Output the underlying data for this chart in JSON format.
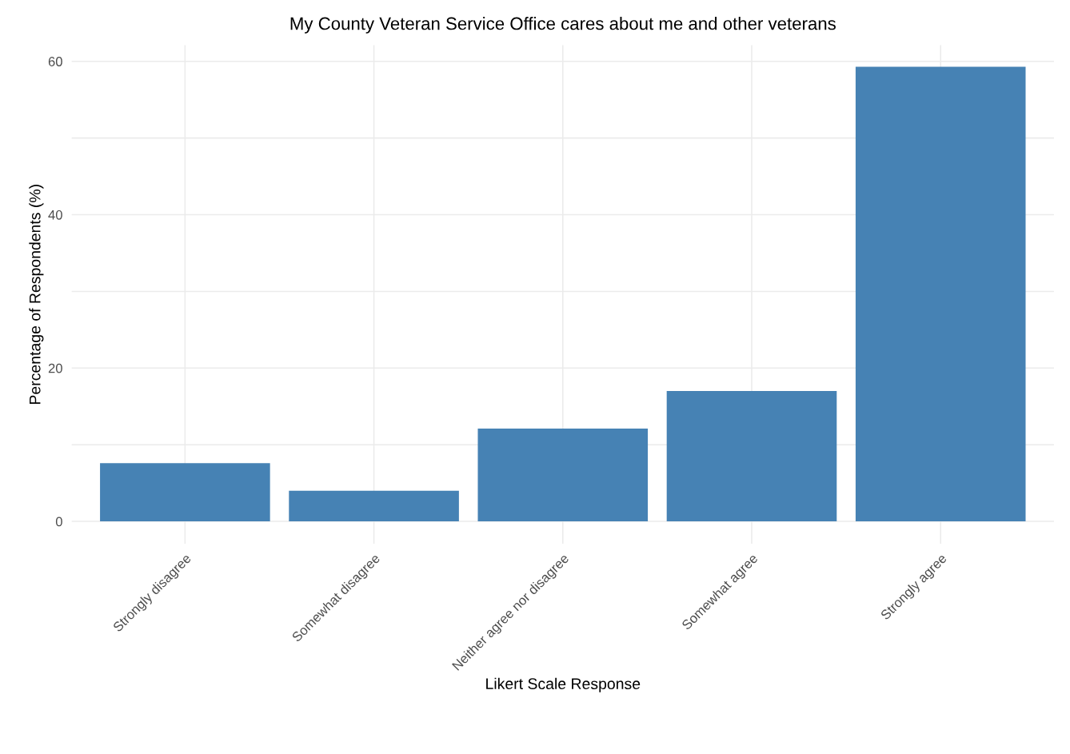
{
  "chart_data": {
    "type": "bar",
    "title": "My County Veteran Service Office cares about me and other veterans",
    "xlabel": "Likert Scale Response",
    "ylabel": "Percentage of Respondents (%)",
    "categories": [
      "Strongly disagree",
      "Somewhat disagree",
      "Neither agree nor disagree",
      "Somewhat agree",
      "Strongly agree"
    ],
    "values": [
      7.6,
      4.0,
      12.1,
      17.0,
      59.3
    ],
    "color": "#4682b4",
    "ylim": [
      -2.9,
      62.1
    ],
    "yticks": [
      0,
      {
        "value": 10,
        "label": null
      },
      20,
      {
        "value": 30,
        "label": null
      },
      40,
      {
        "value": 50,
        "label": null
      },
      60
    ],
    "grid": true
  }
}
